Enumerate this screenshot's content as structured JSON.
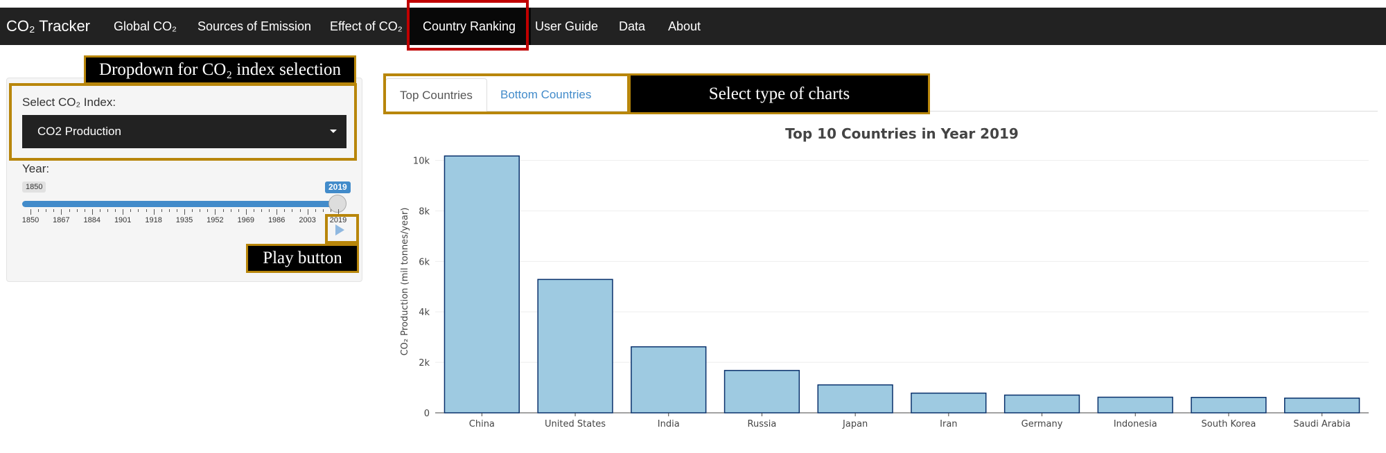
{
  "navbar": {
    "brand": "CO₂ Tracker",
    "items": [
      {
        "label": "Global CO₂"
      },
      {
        "label": "Sources of Emission"
      },
      {
        "label": "Effect of CO₂"
      },
      {
        "label": "Country Ranking",
        "active": true
      },
      {
        "label": "User Guide"
      },
      {
        "label": "Data"
      },
      {
        "label": "About"
      }
    ]
  },
  "annotations": {
    "dropdown": "Dropdown for CO₂ index selection",
    "play": "Play button",
    "tabs": "Select type of charts"
  },
  "sidebar": {
    "select_label": "Select CO₂ Index:",
    "select_value": "CO2 Production",
    "year_label": "Year:",
    "slider_min": "1850",
    "slider_value": "2019",
    "ticks": [
      "1850",
      "1867",
      "1884",
      "1901",
      "1918",
      "1935",
      "1952",
      "1969",
      "1986",
      "2003",
      "2019"
    ]
  },
  "tabs": [
    {
      "label": "Top Countries",
      "active": true
    },
    {
      "label": "Bottom Countries",
      "active": false
    }
  ],
  "chart_data": {
    "type": "bar",
    "title": "Top 10 Countries in Year 2019",
    "ylabel": "CO₂ Production (mil tonnes/year)",
    "xlabel": "",
    "categories": [
      "China",
      "United States",
      "India",
      "Russia",
      "Japan",
      "Iran",
      "Germany",
      "Indonesia",
      "South Korea",
      "Saudi Arabia"
    ],
    "values": [
      10175,
      5285,
      2616,
      1678,
      1107,
      780,
      702,
      618,
      611,
      582
    ],
    "ylim": [
      0,
      10400
    ],
    "yticks": [
      0,
      2000,
      4000,
      6000,
      8000,
      10000
    ],
    "ytick_labels": [
      "0",
      "2k",
      "4k",
      "6k",
      "8k",
      "10k"
    ],
    "grid": true,
    "bar_color": "#9ecae1",
    "bar_edge": "#08306b"
  }
}
